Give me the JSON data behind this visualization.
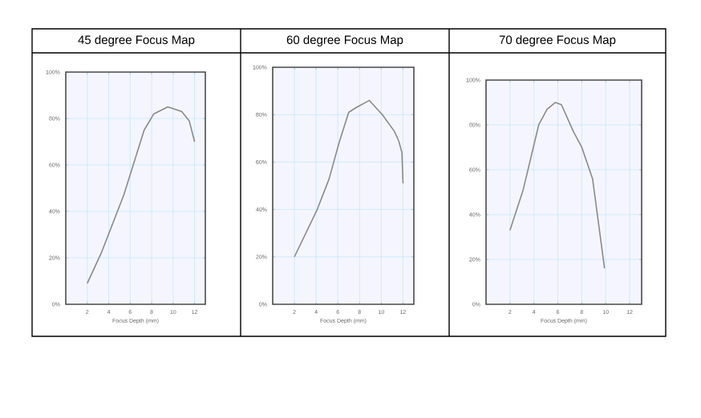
{
  "chart_data": [
    {
      "type": "line",
      "title": "45 degree Focus Map",
      "xlabel": "Focus Depth (mm)",
      "color": "#8a8a8a",
      "grid": true,
      "xlim": [
        0,
        13
      ],
      "ylim": [
        0,
        100
      ],
      "xticks": [
        2,
        4,
        6,
        8,
        10,
        12
      ],
      "yticks": [
        {
          "value": 0,
          "label": "0%"
        },
        {
          "value": 20,
          "label": "20%"
        },
        {
          "value": 40,
          "label": "40%"
        },
        {
          "value": 60,
          "label": "60%"
        },
        {
          "value": 80,
          "label": "80%"
        },
        {
          "value": 100,
          "label": "100%"
        }
      ],
      "x": [
        2,
        3.3,
        5.4,
        7.3,
        8.2,
        9.5,
        10.8,
        11.5,
        12
      ],
      "values": [
        9,
        22,
        47,
        75,
        82,
        85,
        83,
        79,
        70
      ]
    },
    {
      "type": "line",
      "title": "60 degree Focus Map",
      "xlabel": "Focus Depth (mm)",
      "color": "#8a8a8a",
      "grid": true,
      "xlim": [
        0,
        13
      ],
      "ylim": [
        0,
        100
      ],
      "xticks": [
        2,
        4,
        6,
        8,
        10,
        12
      ],
      "yticks": [
        {
          "value": 0,
          "label": "0%"
        },
        {
          "value": 20,
          "label": "20%"
        },
        {
          "value": 40,
          "label": "40%"
        },
        {
          "value": 60,
          "label": "60%"
        },
        {
          "value": 80,
          "label": "80%"
        },
        {
          "value": 100,
          "label": "100%"
        }
      ],
      "x": [
        2,
        4.1,
        5.2,
        6.1,
        7,
        7.7,
        8.9,
        10.1,
        11.2,
        11.6,
        11.9,
        12
      ],
      "values": [
        20,
        40,
        53,
        68,
        81,
        83,
        86,
        80,
        73,
        69,
        64,
        51
      ]
    },
    {
      "type": "line",
      "title": "70 degree Focus Map",
      "xlabel": "Focus Depth (mm)",
      "color": "#8a8a8a",
      "grid": true,
      "xlim": [
        0,
        13
      ],
      "ylim": [
        0,
        100
      ],
      "xticks": [
        2,
        4,
        6,
        8,
        10,
        12
      ],
      "yticks": [
        {
          "value": 0,
          "label": "0%"
        },
        {
          "value": 20,
          "label": "20%"
        },
        {
          "value": 40,
          "label": "40%"
        },
        {
          "value": 60,
          "label": "60%"
        },
        {
          "value": 80,
          "label": "80%"
        },
        {
          "value": 100,
          "label": "100%"
        }
      ],
      "x": [
        2,
        3.1,
        4.4,
        5.1,
        5.8,
        6.3,
        7.3,
        8,
        8.9,
        9.9
      ],
      "values": [
        33,
        51,
        80,
        87,
        90,
        89,
        77,
        70,
        56,
        16
      ]
    }
  ]
}
